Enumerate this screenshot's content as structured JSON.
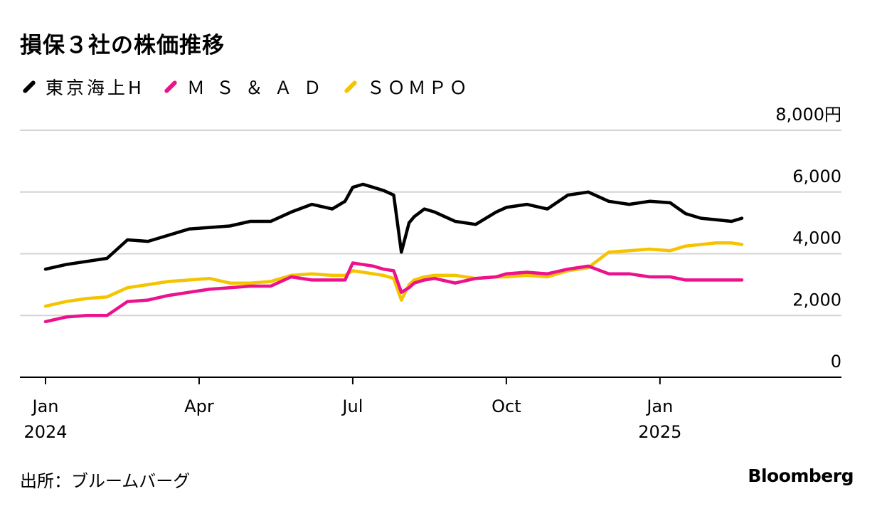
{
  "title": "損保３社の株価推移",
  "source": "出所：ブルームバーグ",
  "brand": "Bloomberg",
  "chart_data": {
    "type": "line",
    "title": "損保３社の株価推移",
    "ylim": [
      0,
      8000
    ],
    "yticks": [
      {
        "value": 8000,
        "label": "8,000円"
      },
      {
        "value": 6000,
        "label": "6,000"
      },
      {
        "value": 4000,
        "label": "4,000"
      },
      {
        "value": 2000,
        "label": "2,000"
      },
      {
        "value": 0,
        "label": "0"
      }
    ],
    "xlim": [
      0,
      15.5
    ],
    "xticks": [
      {
        "value": 0,
        "label": "Jan",
        "sub": "2024"
      },
      {
        "value": 3,
        "label": "Apr",
        "sub": ""
      },
      {
        "value": 6,
        "label": "Jul",
        "sub": ""
      },
      {
        "value": 9,
        "label": "Oct",
        "sub": ""
      },
      {
        "value": 12,
        "label": "Jan",
        "sub": "2025"
      }
    ],
    "x": [
      0,
      0.4,
      0.8,
      1.2,
      1.6,
      2,
      2.4,
      2.8,
      3.2,
      3.6,
      4,
      4.4,
      4.8,
      5.2,
      5.6,
      5.85,
      6,
      6.2,
      6.4,
      6.6,
      6.8,
      6.95,
      7.1,
      7.2,
      7.4,
      7.6,
      8,
      8.4,
      8.8,
      9,
      9.4,
      9.8,
      10.2,
      10.6,
      11,
      11.4,
      11.8,
      12.2,
      12.5,
      12.8,
      13.1,
      13.4,
      13.6
    ],
    "series": [
      {
        "name": "東京海上H",
        "color": "#000000",
        "values": [
          3500,
          3650,
          3750,
          3850,
          4450,
          4400,
          4600,
          4800,
          4850,
          4900,
          5050,
          5050,
          5350,
          5600,
          5450,
          5700,
          6150,
          6250,
          6150,
          6050,
          5900,
          4050,
          5000,
          5200,
          5450,
          5350,
          5050,
          4950,
          5350,
          5500,
          5600,
          5450,
          5900,
          6000,
          5700,
          5600,
          5700,
          5650,
          5300,
          5150,
          5100,
          5050,
          5150
        ]
      },
      {
        "name": "Ｍ Ｓ ＆ Ａ Ｄ",
        "color": "#ec128c",
        "values": [
          1800,
          1950,
          2000,
          2000,
          2450,
          2500,
          2650,
          2750,
          2850,
          2900,
          2950,
          2950,
          3250,
          3150,
          3150,
          3150,
          3700,
          3650,
          3600,
          3500,
          3450,
          2750,
          2900,
          3050,
          3150,
          3200,
          3050,
          3200,
          3250,
          3350,
          3400,
          3350,
          3500,
          3600,
          3350,
          3350,
          3250,
          3250,
          3150,
          3150,
          3150,
          3150,
          3150
        ]
      },
      {
        "name": "ＳＯＭＰＯ",
        "color": "#f5c400",
        "values": [
          2300,
          2450,
          2550,
          2600,
          2900,
          3000,
          3100,
          3150,
          3200,
          3050,
          3050,
          3100,
          3300,
          3350,
          3300,
          3300,
          3450,
          3400,
          3350,
          3300,
          3200,
          2500,
          3000,
          3150,
          3250,
          3300,
          3300,
          3200,
          3250,
          3250,
          3300,
          3250,
          3450,
          3550,
          4050,
          4100,
          4150,
          4100,
          4250,
          4300,
          4350,
          4350,
          4300
        ]
      }
    ]
  }
}
